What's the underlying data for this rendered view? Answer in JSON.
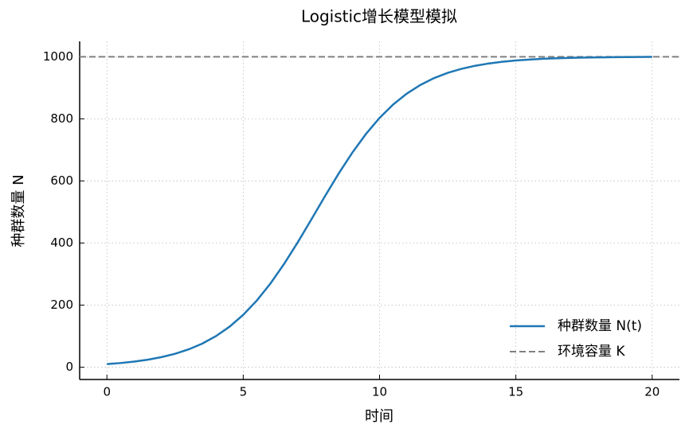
{
  "chart_data": {
    "type": "line",
    "title": "Logistic增长模型模拟",
    "x_label": "时间",
    "y_label": "种群数量 N",
    "x": [
      0,
      0.5,
      1,
      1.5,
      2,
      2.5,
      3,
      3.5,
      4,
      4.5,
      5,
      5.5,
      6,
      6.5,
      7,
      7.5,
      8,
      8.5,
      9,
      9.5,
      10,
      10.5,
      11,
      11.5,
      12,
      12.5,
      13,
      13.5,
      14,
      14.5,
      15,
      15.5,
      16,
      16.5,
      17,
      17.5,
      18,
      18.5,
      19,
      19.5,
      20
    ],
    "series": [
      {
        "name": "种群数量 N(t)",
        "color": "#1f77b4",
        "values": [
          10,
          13.5,
          18.1,
          24.2,
          32.5,
          43.3,
          57.6,
          76.2,
          100.2,
          130.7,
          168.7,
          215.0,
          269.9,
          332.9,
          402.4,
          476.2,
          551.0,
          623.6,
          691.0,
          751.1,
          803.0,
          846.2,
          881.3,
          909.3,
          931.2,
          948.1,
          961.0,
          970.8,
          978.2,
          983.8,
          987.9,
          991.0,
          993.3,
          995.1,
          996.3,
          997.3,
          998.0,
          998.5,
          998.9,
          999.2,
          999.4
        ]
      }
    ],
    "reference_line": {
      "name": "环境容量 K",
      "value": 1000,
      "color": "#808080"
    },
    "xlim": [
      -1,
      21
    ],
    "ylim": [
      -39.5,
      1049.5
    ],
    "xticks": [
      0,
      5,
      10,
      15,
      20
    ],
    "yticks": [
      0,
      200,
      400,
      600,
      800,
      1000
    ],
    "grid": true,
    "legend": "lower right"
  }
}
